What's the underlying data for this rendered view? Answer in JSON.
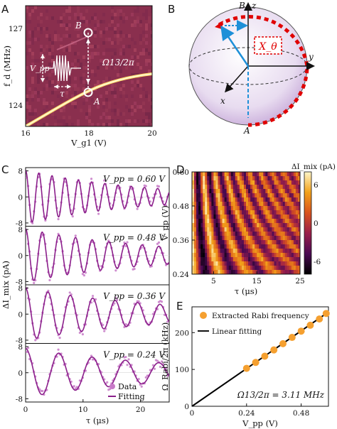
{
  "panels": {
    "A": {
      "label": "A",
      "ylabel": "f_d (MHz)",
      "xlabel": "V_g1 (V)",
      "xticks": [
        "16",
        "18",
        "20"
      ],
      "yticks": [
        "124",
        "127"
      ],
      "point_B": "B",
      "point_A": "A",
      "omega_label": "Ω13/2π",
      "vpp_label": "V_pp",
      "tau_label": "τ"
    },
    "B": {
      "label": "B",
      "axis_z": "z",
      "axis_y": "y",
      "axis_x": "x",
      "top_state": "B",
      "bottom_state": "A",
      "rotation_label": "X_θ"
    },
    "C": {
      "label": "C"
    },
    "D": {
      "label": "D"
    },
    "E": {
      "label": "E"
    }
  },
  "chart_data": [
    {
      "panel": "C",
      "type": "scatter",
      "xlabel": "τ (μs)",
      "ylabel": "ΔI_mix (pA)",
      "xlim": [
        0,
        25
      ],
      "ylim": [
        -9,
        9
      ],
      "xticks": [
        0,
        10,
        20
      ],
      "yticks": [
        8,
        0,
        -8
      ],
      "legend": {
        "placement": "bottom-right",
        "entries": [
          "Data",
          "Fitting"
        ]
      },
      "series": [
        {
          "vpp": "V_pp = 0.60 V",
          "amplitude": 8.2,
          "period_us": 2.3,
          "decay_us": 20,
          "data_color": "#c77ac7",
          "fit_color": "#8b1f8b"
        },
        {
          "vpp": "V_pp = 0.48 V",
          "amplitude": 8.2,
          "period_us": 2.9,
          "decay_us": 22,
          "data_color": "#c77ac7",
          "fit_color": "#8b1f8b"
        },
        {
          "vpp": "V_pp = 0.36 V",
          "amplitude": 8.0,
          "period_us": 3.9,
          "decay_us": 24,
          "data_color": "#c77ac7",
          "fit_color": "#8b1f8b"
        },
        {
          "vpp": "V_pp = 0.24 V",
          "amplitude": 7.5,
          "period_us": 5.8,
          "decay_us": 26,
          "data_color": "#c77ac7",
          "fit_color": "#8b1f8b"
        }
      ]
    },
    {
      "panel": "D",
      "type": "heatmap",
      "xlabel": "τ (μs)",
      "ylabel": "V_pp (V)",
      "colorbar_label": "ΔI_mix (pA)",
      "xlim": [
        0,
        25
      ],
      "ylim": [
        0.24,
        0.6
      ],
      "xticks": [
        5,
        15,
        25
      ],
      "yticks": [
        0.24,
        0.36,
        0.48,
        0.6
      ],
      "colorbar_ticks": [
        6,
        0,
        -6
      ],
      "colorbar_range": [
        -8,
        8
      ],
      "colormap": [
        "#000000",
        "#4a0a52",
        "#9a1f4a",
        "#d9531e",
        "#f3a21a",
        "#fff6c8"
      ]
    },
    {
      "panel": "E",
      "type": "scatter",
      "xlabel": "V_pp (V)",
      "ylabel": "Ω_Rabi/2π (kHz)",
      "xlim": [
        0,
        0.6
      ],
      "ylim": [
        0,
        270
      ],
      "xticks": [
        0,
        0.24,
        0.48
      ],
      "yticks": [
        0,
        100,
        200
      ],
      "annotation": "Ω13/2π = 3.11 MHz",
      "legend": {
        "placement": "top-left",
        "entries": [
          "Extracted Rabi frequency",
          "Linear fitting"
        ]
      },
      "points": {
        "x": [
          0.24,
          0.28,
          0.32,
          0.36,
          0.4,
          0.44,
          0.48,
          0.52,
          0.56,
          0.59
        ],
        "y": [
          103,
          119,
          136,
          153,
          170,
          187,
          204,
          220,
          237,
          252
        ],
        "color": "#f5a030"
      },
      "fit": {
        "x": [
          0,
          0.6
        ],
        "y": [
          0,
          256
        ],
        "color": "#000000",
        "note_dashed_below": 0.24
      }
    }
  ]
}
